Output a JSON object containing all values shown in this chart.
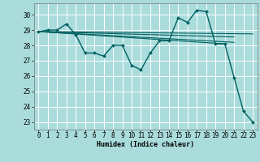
{
  "background_color": "#aadcdc",
  "plot_bg_color": "#aadcdc",
  "grid_color": "#ffffff",
  "line_color": "#006060",
  "xlabel": "Humidex (Indice chaleur)",
  "xlim": [
    -0.5,
    23.5
  ],
  "ylim": [
    22.5,
    30.75
  ],
  "yticks": [
    23,
    24,
    25,
    26,
    27,
    28,
    29,
    30
  ],
  "xticks": [
    0,
    1,
    2,
    3,
    4,
    5,
    6,
    7,
    8,
    9,
    10,
    11,
    12,
    13,
    14,
    15,
    16,
    17,
    18,
    19,
    20,
    21,
    22,
    23
  ],
  "series_main": {
    "x": [
      0,
      1,
      2,
      3,
      4,
      5,
      6,
      7,
      8,
      9,
      10,
      11,
      12,
      13,
      14,
      15,
      16,
      17,
      18,
      19,
      20,
      21,
      22,
      23
    ],
    "y": [
      28.9,
      29.0,
      29.0,
      29.4,
      28.7,
      27.5,
      27.5,
      27.3,
      28.0,
      28.0,
      26.7,
      26.4,
      27.5,
      28.3,
      28.3,
      29.8,
      29.5,
      30.3,
      30.2,
      28.1,
      28.1,
      25.9,
      23.7,
      23.0
    ],
    "linewidth": 1.0,
    "markersize": 2.0
  },
  "series_flat": [
    {
      "x": [
        0,
        23
      ],
      "y": [
        28.9,
        28.75
      ]
    },
    {
      "x": [
        0,
        21
      ],
      "y": [
        28.9,
        28.55
      ]
    },
    {
      "x": [
        0,
        21
      ],
      "y": [
        28.9,
        28.2
      ]
    },
    {
      "x": [
        0,
        20
      ],
      "y": [
        28.9,
        28.1
      ]
    }
  ],
  "flat_linewidth": 0.8,
  "xlabel_fontsize": 6,
  "tick_fontsize": 5.5,
  "ytick_fontsize": 5.5
}
